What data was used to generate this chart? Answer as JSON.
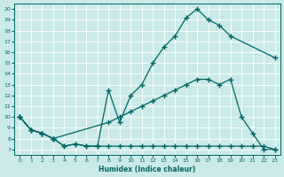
{
  "background_color": "#cce9e9",
  "grid_color": "#b0d8d8",
  "line_color": "#006666",
  "xlabel": "Humidex (Indice chaleur)",
  "xlim": [
    -0.5,
    23.5
  ],
  "ylim": [
    6.5,
    20.5
  ],
  "xticks": [
    0,
    1,
    2,
    3,
    4,
    5,
    6,
    7,
    8,
    9,
    10,
    11,
    12,
    13,
    14,
    15,
    16,
    17,
    18,
    19,
    20,
    21,
    22,
    23
  ],
  "yticks": [
    7,
    8,
    9,
    10,
    11,
    12,
    13,
    14,
    15,
    16,
    17,
    18,
    19,
    20
  ],
  "line1_x": [
    0,
    1,
    2,
    3,
    4,
    5,
    6,
    7,
    8,
    9,
    10,
    11,
    12,
    13,
    14,
    15,
    16,
    17,
    18,
    19,
    23
  ],
  "line1_y": [
    10,
    8.8,
    8.5,
    8.0,
    7.3,
    7.5,
    7.3,
    7.3,
    12.5,
    9.5,
    12.0,
    13.0,
    15.0,
    16.5,
    17.5,
    19.2,
    20.0,
    19.0,
    18.5,
    17.5,
    15.5
  ],
  "line2_x": [
    0,
    1,
    2,
    3,
    4,
    5,
    6,
    7,
    8,
    9,
    10,
    11,
    12,
    13,
    14,
    15,
    16,
    17,
    18,
    19,
    20,
    21,
    22,
    23
  ],
  "line2_y": [
    10,
    8.8,
    8.5,
    8.0,
    7.3,
    7.5,
    7.3,
    7.3,
    7.3,
    7.3,
    7.3,
    7.3,
    7.3,
    7.3,
    7.3,
    7.3,
    7.3,
    7.3,
    7.3,
    7.3,
    7.3,
    7.3,
    7.3,
    7.0
  ],
  "line3_x": [
    0,
    1,
    2,
    3,
    8,
    9,
    10,
    11,
    12,
    13,
    14,
    15,
    16,
    17,
    18,
    19,
    20,
    21,
    22,
    23
  ],
  "line3_y": [
    10,
    8.8,
    8.5,
    8.0,
    9.5,
    10.0,
    10.5,
    11.0,
    11.5,
    12.0,
    12.5,
    13.0,
    13.5,
    13.5,
    13.0,
    13.5,
    10.0,
    8.5,
    7.0,
    7.0
  ],
  "marker": "+",
  "markersize": 4,
  "linewidth": 0.9
}
